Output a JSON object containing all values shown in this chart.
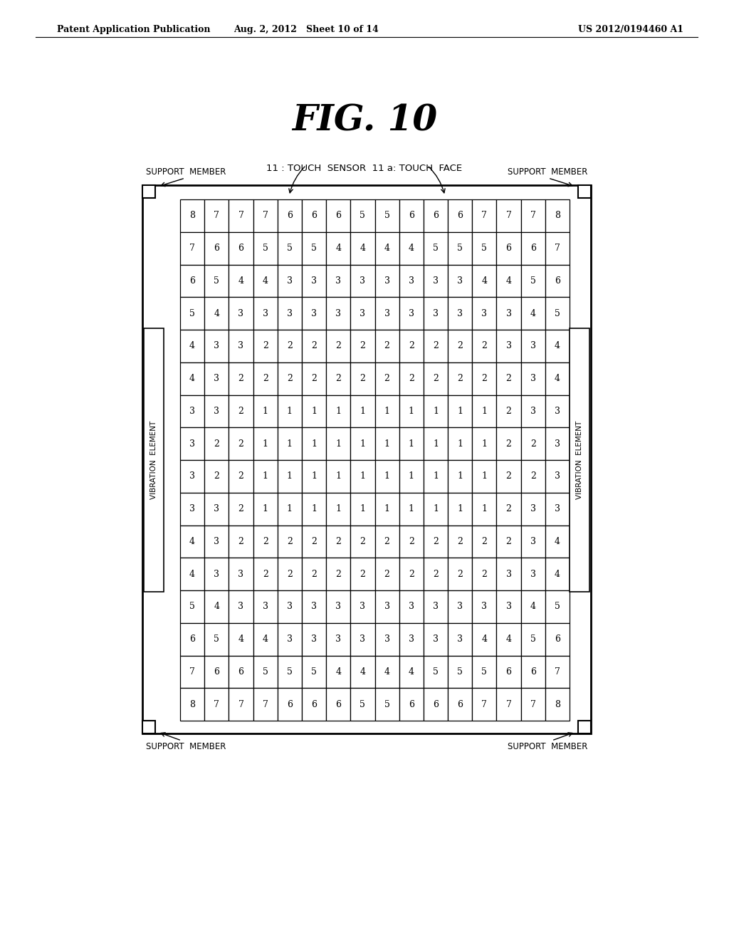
{
  "title": "FIG. 10",
  "header_left": "Patent Application Publication",
  "header_center": "Aug. 2, 2012   Sheet 10 of 14",
  "header_right": "US 2012/0194460 A1",
  "label_sensor": "11 : TOUCH  SENSOR  11 a: TOUCH  FACE",
  "label_support_tl": "SUPPORT  MEMBER",
  "label_support_tr": "SUPPORT  MEMBER",
  "label_support_bl": "SUPPORT  MEMBER",
  "label_support_br": "SUPPORT  MEMBER",
  "label_vib_left": "VIBRATION  ELEMENT",
  "label_vib_right": "VIBRATION  ELEMENT",
  "grid": [
    [
      8,
      7,
      7,
      7,
      6,
      6,
      6,
      5,
      5,
      6,
      6,
      6,
      7,
      7,
      7,
      8
    ],
    [
      7,
      6,
      6,
      5,
      5,
      5,
      4,
      4,
      4,
      4,
      5,
      5,
      5,
      6,
      6,
      7
    ],
    [
      6,
      5,
      4,
      4,
      3,
      3,
      3,
      3,
      3,
      3,
      3,
      3,
      4,
      4,
      5,
      6
    ],
    [
      5,
      4,
      3,
      3,
      3,
      3,
      3,
      3,
      3,
      3,
      3,
      3,
      3,
      3,
      4,
      5
    ],
    [
      4,
      3,
      3,
      2,
      2,
      2,
      2,
      2,
      2,
      2,
      2,
      2,
      2,
      3,
      3,
      4
    ],
    [
      4,
      3,
      2,
      2,
      2,
      2,
      2,
      2,
      2,
      2,
      2,
      2,
      2,
      2,
      3,
      4
    ],
    [
      3,
      3,
      2,
      1,
      1,
      1,
      1,
      1,
      1,
      1,
      1,
      1,
      1,
      2,
      3,
      3
    ],
    [
      3,
      2,
      2,
      1,
      1,
      1,
      1,
      1,
      1,
      1,
      1,
      1,
      1,
      2,
      2,
      3
    ],
    [
      3,
      2,
      2,
      1,
      1,
      1,
      1,
      1,
      1,
      1,
      1,
      1,
      1,
      2,
      2,
      3
    ],
    [
      3,
      3,
      2,
      1,
      1,
      1,
      1,
      1,
      1,
      1,
      1,
      1,
      1,
      2,
      3,
      3
    ],
    [
      4,
      3,
      2,
      2,
      2,
      2,
      2,
      2,
      2,
      2,
      2,
      2,
      2,
      2,
      3,
      4
    ],
    [
      4,
      3,
      3,
      2,
      2,
      2,
      2,
      2,
      2,
      2,
      2,
      2,
      2,
      3,
      3,
      4
    ],
    [
      5,
      4,
      3,
      3,
      3,
      3,
      3,
      3,
      3,
      3,
      3,
      3,
      3,
      3,
      4,
      5
    ],
    [
      6,
      5,
      4,
      4,
      3,
      3,
      3,
      3,
      3,
      3,
      3,
      3,
      4,
      4,
      5,
      6
    ],
    [
      7,
      6,
      6,
      5,
      5,
      5,
      4,
      4,
      4,
      4,
      5,
      5,
      5,
      6,
      6,
      7
    ],
    [
      8,
      7,
      7,
      7,
      6,
      6,
      6,
      5,
      5,
      6,
      6,
      6,
      7,
      7,
      7,
      8
    ]
  ],
  "bg_color": "#ffffff",
  "text_color": "#000000"
}
